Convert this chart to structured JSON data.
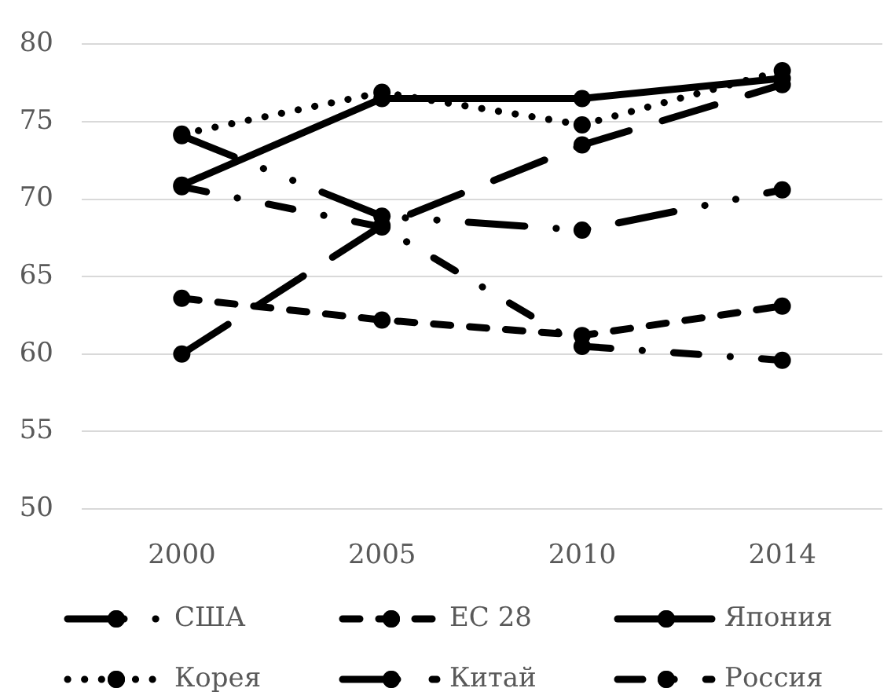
{
  "chart_data": {
    "type": "line",
    "categories": [
      "2000",
      "2005",
      "2010",
      "2014"
    ],
    "series": [
      {
        "name": "США",
        "color": "#000000",
        "line_style": "dashed",
        "values": [
          74.1,
          68.9,
          68.0,
          70.6
        ]
      },
      {
        "name": "ЕС 28",
        "color": "#000000",
        "line_style": "dashed",
        "values": [
          63.6,
          62.2,
          61.2,
          63.1
        ]
      },
      {
        "name": "Япония",
        "color": "#000000",
        "line_style": "solid",
        "values": [
          70.9,
          76.5,
          76.5,
          77.8
        ]
      },
      {
        "name": "Корея",
        "color": "#000000",
        "line_style": "dotted",
        "values": [
          74.2,
          76.9,
          74.8,
          78.3
        ]
      },
      {
        "name": "Китай",
        "color": "#000000",
        "line_style": "dashed",
        "values": [
          60.0,
          68.3,
          73.5,
          77.4
        ]
      },
      {
        "name": "Россия",
        "color": "#000000",
        "line_style": "dashed",
        "values": [
          70.8,
          68.2,
          60.5,
          59.6
        ]
      }
    ],
    "ylim": [
      50,
      80
    ],
    "yticks": [
      50,
      55,
      60,
      65,
      70,
      75,
      80
    ],
    "grid": "y",
    "legend": "bottom",
    "marker": "circle"
  }
}
